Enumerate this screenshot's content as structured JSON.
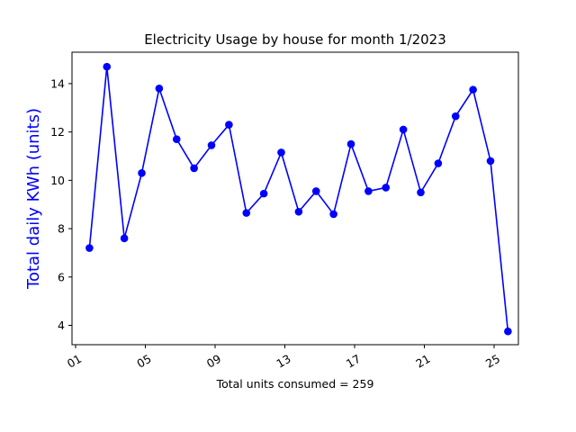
{
  "chart_data": {
    "type": "line",
    "title": "Electricity Usage by house for month 1/2023",
    "xlabel": "Total units consumed = 259",
    "ylabel": "Total daily KWh (units)",
    "ylabel_color": "#0000ff",
    "line_color": "#0000ff",
    "marker": "circle",
    "grid": false,
    "legend": "none",
    "xlim": [
      1,
      26.6
    ],
    "ylim": [
      3.2,
      15.3
    ],
    "xticks": [
      1,
      5,
      9,
      13,
      17,
      21,
      25
    ],
    "xtick_labels": [
      "01",
      "05",
      "09",
      "13",
      "17",
      "21",
      "25"
    ],
    "yticks": [
      4,
      6,
      8,
      10,
      12,
      14
    ],
    "ytick_labels": [
      "4",
      "6",
      "8",
      "10",
      "12",
      "14"
    ],
    "x": [
      2,
      3,
      4,
      5,
      6,
      7,
      8,
      9,
      10,
      11,
      12,
      13,
      14,
      15,
      16,
      17,
      18,
      19,
      20,
      21,
      22,
      23,
      24,
      25,
      26
    ],
    "y": [
      7.2,
      14.7,
      7.6,
      10.3,
      13.8,
      11.7,
      10.5,
      11.45,
      12.3,
      8.65,
      9.45,
      11.15,
      8.7,
      9.55,
      8.6,
      11.5,
      9.55,
      9.7,
      12.1,
      9.5,
      10.7,
      12.65,
      13.75,
      10.8,
      3.75
    ]
  }
}
